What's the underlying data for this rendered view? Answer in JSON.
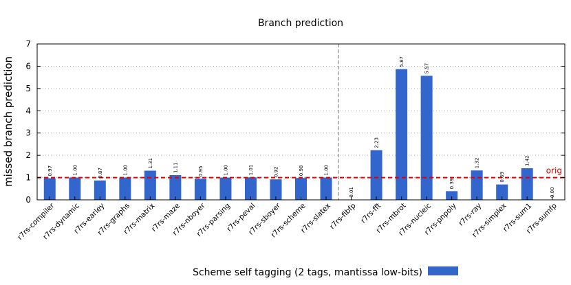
{
  "chart_data": {
    "type": "bar",
    "title": "Branch prediction",
    "ylabel": "missed branch prediction",
    "xlabel": "",
    "ylim": [
      0,
      7
    ],
    "yticks": [
      0,
      1,
      2,
      3,
      4,
      5,
      6,
      7
    ],
    "grid": "horizontal dotted",
    "legend_position": "bottom",
    "categories": [
      "r7rs-compiler",
      "r7rs-dynamic",
      "r7rs-earley",
      "r7rs-graphs",
      "r7rs-matrix",
      "r7rs-maze",
      "r7rs-nboyer",
      "r7rs-parsing",
      "r7rs-peval",
      "r7rs-sboyer",
      "r7rs-scheme",
      "r7rs-slatex",
      "r7rs-fibfp",
      "r7rs-fft",
      "r7rs-mbrot",
      "r7rs-nucleic",
      "r7rs-pnpoly",
      "r7rs-ray",
      "r7rs-simplex",
      "r7rs-sum1",
      "r7rs-sumfp"
    ],
    "series": [
      {
        "name": "Scheme self tagging (2 tags, mantissa low-bits)",
        "color": "#3366cc",
        "values": [
          0.97,
          1.0,
          0.87,
          1.0,
          1.31,
          1.11,
          0.95,
          1.0,
          1.01,
          0.92,
          0.98,
          1.0,
          0.01,
          2.23,
          5.87,
          5.57,
          0.39,
          1.32,
          0.69,
          1.42,
          0.0
        ],
        "labels": [
          "0.97",
          "1.00",
          "0.87",
          "1.00",
          "1.31",
          "1.11",
          "0.95",
          "1.00",
          "1.01",
          "0.92",
          "0.98",
          "1.00",
          "0.01",
          "2.23",
          "5.87",
          "5.57",
          "0.39",
          "1.32",
          "0.69",
          "1.42",
          "0.00"
        ]
      }
    ],
    "reference_line": {
      "value": 1,
      "label": "orig",
      "color": "#e00000"
    },
    "group_separator_after_index": 11
  }
}
